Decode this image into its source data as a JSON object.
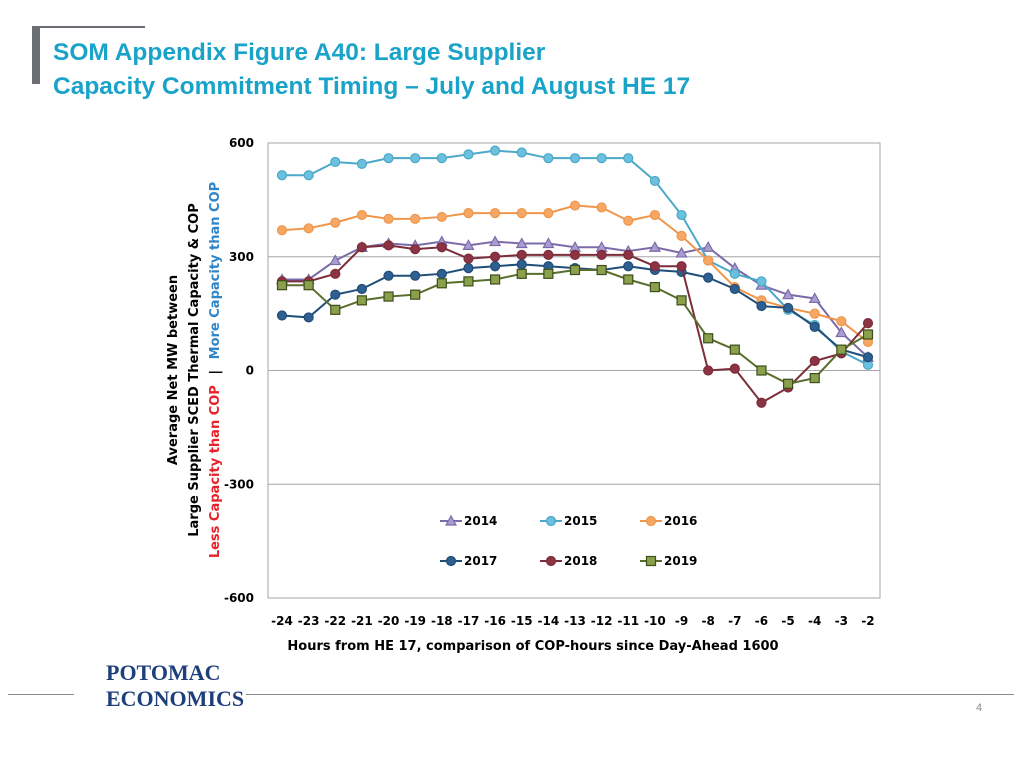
{
  "slide": {
    "title_line1": "SOM Appendix Figure A40:  Large Supplier",
    "title_line2": "Capacity Commitment Timing – July and August HE 17",
    "page_number": "4",
    "logo_line1": "POTOMAC",
    "logo_line2": "ECONOMICS"
  },
  "colors": {
    "title": "#1aa3c9",
    "s2014": "#7b6ba8",
    "s2015": "#4aa8c8",
    "s2016": "#f0964a",
    "s2017": "#1f4e79",
    "s2018": "#7b2d3a",
    "s2019": "#5a6e2c"
  },
  "chart_data": {
    "type": "line",
    "xlabel": "Hours from HE 17, comparison  of COP-hours  since Day-Ahead  1600",
    "ylabel_line1": "Average Net MW between",
    "ylabel_line2": "Large Supplier SCED Thermal Capacity & COP",
    "ylabel_line3_red": "Less Capacity  than COP",
    "ylabel_line3_sep": "|",
    "ylabel_line3_blue": "More Capacity  than COP",
    "x": [
      -24,
      -23,
      -22,
      -21,
      -20,
      -19,
      -18,
      -17,
      -16,
      -15,
      -14,
      -13,
      -12,
      -11,
      -10,
      -9,
      -8,
      -7,
      -6,
      -5,
      -4,
      -3,
      -2
    ],
    "ylim": [
      -600,
      600
    ],
    "yticks": [
      600,
      300,
      0,
      -300,
      -600
    ],
    "ytick_labels": [
      "600",
      "300",
      "0",
      "-300",
      "-600"
    ],
    "grid": "horizontal",
    "legend_position": "bottom-inside",
    "series": [
      {
        "name": "2014",
        "marker": "triangle",
        "values": [
          240,
          240,
          290,
          325,
          335,
          330,
          340,
          330,
          340,
          335,
          335,
          325,
          325,
          315,
          325,
          310,
          325,
          270,
          225,
          200,
          190,
          100,
          35
        ]
      },
      {
        "name": "2015",
        "marker": "circle",
        "values": [
          515,
          515,
          550,
          545,
          560,
          560,
          560,
          570,
          580,
          575,
          560,
          560,
          560,
          560,
          500,
          410,
          290,
          255,
          235,
          160,
          120,
          50,
          15
        ]
      },
      {
        "name": "2016",
        "marker": "circle",
        "values": [
          370,
          375,
          390,
          410,
          400,
          400,
          405,
          415,
          415,
          415,
          415,
          435,
          430,
          395,
          410,
          355,
          290,
          220,
          185,
          165,
          150,
          130,
          75
        ]
      },
      {
        "name": "2017",
        "marker": "circle",
        "values": [
          145,
          140,
          200,
          215,
          250,
          250,
          255,
          270,
          275,
          280,
          275,
          270,
          265,
          275,
          265,
          260,
          245,
          215,
          170,
          165,
          115,
          55,
          35
        ]
      },
      {
        "name": "2018",
        "marker": "circle",
        "values": [
          235,
          235,
          255,
          325,
          330,
          320,
          325,
          295,
          300,
          305,
          305,
          305,
          305,
          305,
          275,
          275,
          0,
          5,
          -85,
          -45,
          25,
          45,
          125
        ]
      },
      {
        "name": "2019",
        "marker": "square",
        "values": [
          225,
          225,
          160,
          185,
          195,
          200,
          230,
          235,
          240,
          255,
          255,
          265,
          265,
          240,
          220,
          185,
          85,
          55,
          0,
          -35,
          -20,
          55,
          95
        ]
      }
    ]
  }
}
